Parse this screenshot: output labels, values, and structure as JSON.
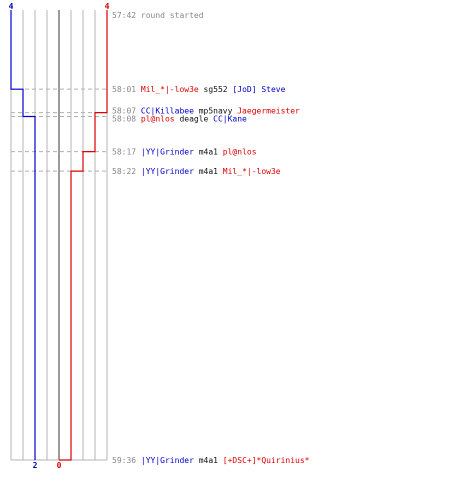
{
  "colors": {
    "team_blue": "#0000cc",
    "team_red": "#dd0000",
    "frame": "#b4b4b4",
    "center": "#7a7a7a",
    "dash": "#b0b0b0",
    "time_text": "#888888",
    "weapon_text": "#111111"
  },
  "chart_data": {
    "type": "timeline",
    "description_free": true,
    "teams": {
      "blue": {
        "start_count": "4",
        "end_count": "2"
      },
      "red": {
        "start_count": "4",
        "end_count": "0"
      }
    },
    "events": [
      {
        "time": "57:42",
        "text": "round started",
        "kind": "start"
      },
      {
        "time": "58:01",
        "killer": "Mil_*|-low3e",
        "killer_team": "red",
        "weapon": "sg552",
        "victim": "[JoD] Steve",
        "victim_team": "blue",
        "blue_after": 3,
        "red_after": 4
      },
      {
        "time": "58:07",
        "killer": "CC|Killabee",
        "killer_team": "blue",
        "weapon": "mp5navy",
        "victim": "Jaegermeister",
        "victim_team": "red",
        "blue_after": 3,
        "red_after": 3
      },
      {
        "time": "58:08",
        "killer": "pl@nlos",
        "killer_team": "red",
        "weapon": "deagle",
        "victim": "CC|Kane",
        "victim_team": "blue",
        "blue_after": 2,
        "red_after": 3
      },
      {
        "time": "58:17",
        "killer": "|YY|Grinder",
        "killer_team": "blue",
        "weapon": "m4a1",
        "victim": "pl@nlos",
        "victim_team": "red",
        "blue_after": 2,
        "red_after": 2
      },
      {
        "time": "58:22",
        "killer": "|YY|Grinder",
        "killer_team": "blue",
        "weapon": "m4a1",
        "victim": "Mil_*|-low3e",
        "victim_team": "red",
        "blue_after": 2,
        "red_after": 1
      },
      {
        "time": "59:36",
        "killer": "|YY|Grinder",
        "killer_team": "blue",
        "weapon": "m4a1",
        "victim": "[+DSC+]*Quirinius*",
        "victim_team": "red",
        "blue_after": 2,
        "red_after": 0
      }
    ]
  }
}
